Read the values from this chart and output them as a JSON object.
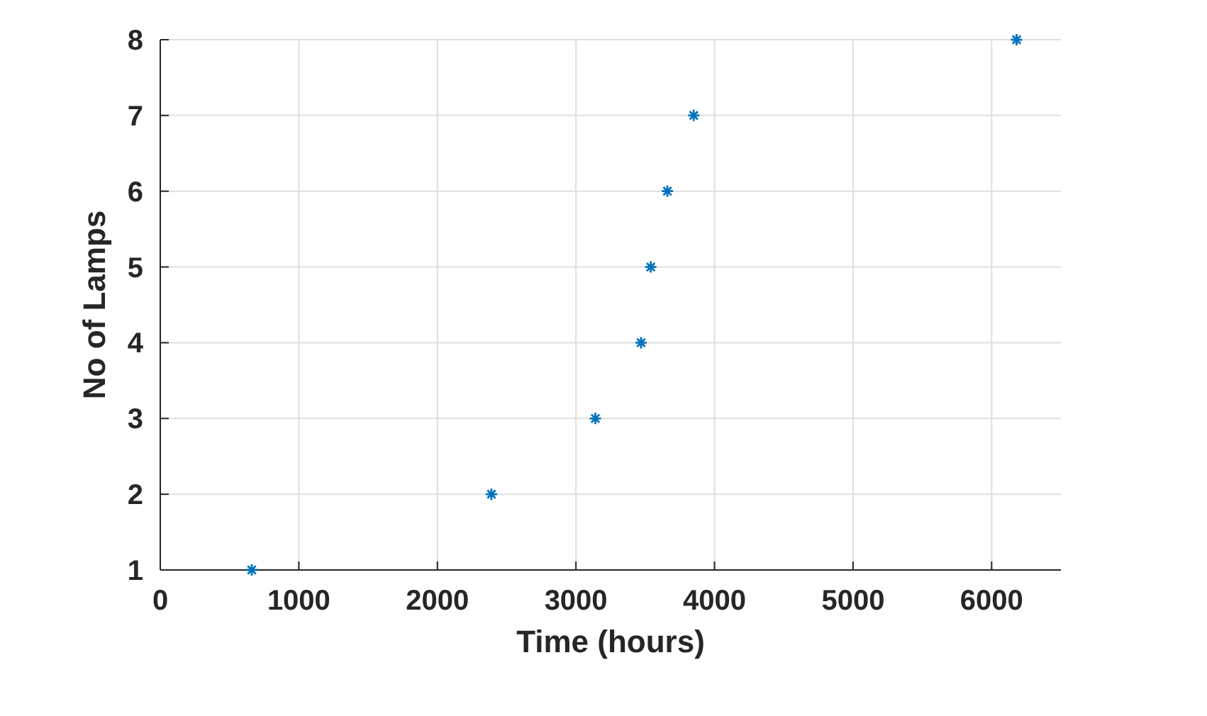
{
  "chart_data": {
    "type": "scatter",
    "xlabel": "Time (hours)",
    "ylabel": "No of Lamps",
    "x": [
      660,
      2390,
      3140,
      3470,
      3540,
      3660,
      3850,
      6180
    ],
    "values": [
      1,
      2,
      3,
      4,
      5,
      6,
      7,
      8
    ],
    "color": "#0072bd",
    "marker": "cross",
    "grid": true,
    "xlim": [
      0,
      6500
    ],
    "xticks": [
      0,
      1000,
      2000,
      3000,
      4000,
      5000,
      6000
    ],
    "ylim": [
      1,
      8
    ],
    "yticks": [
      1,
      2,
      3,
      4,
      5,
      6,
      7,
      8
    ]
  }
}
